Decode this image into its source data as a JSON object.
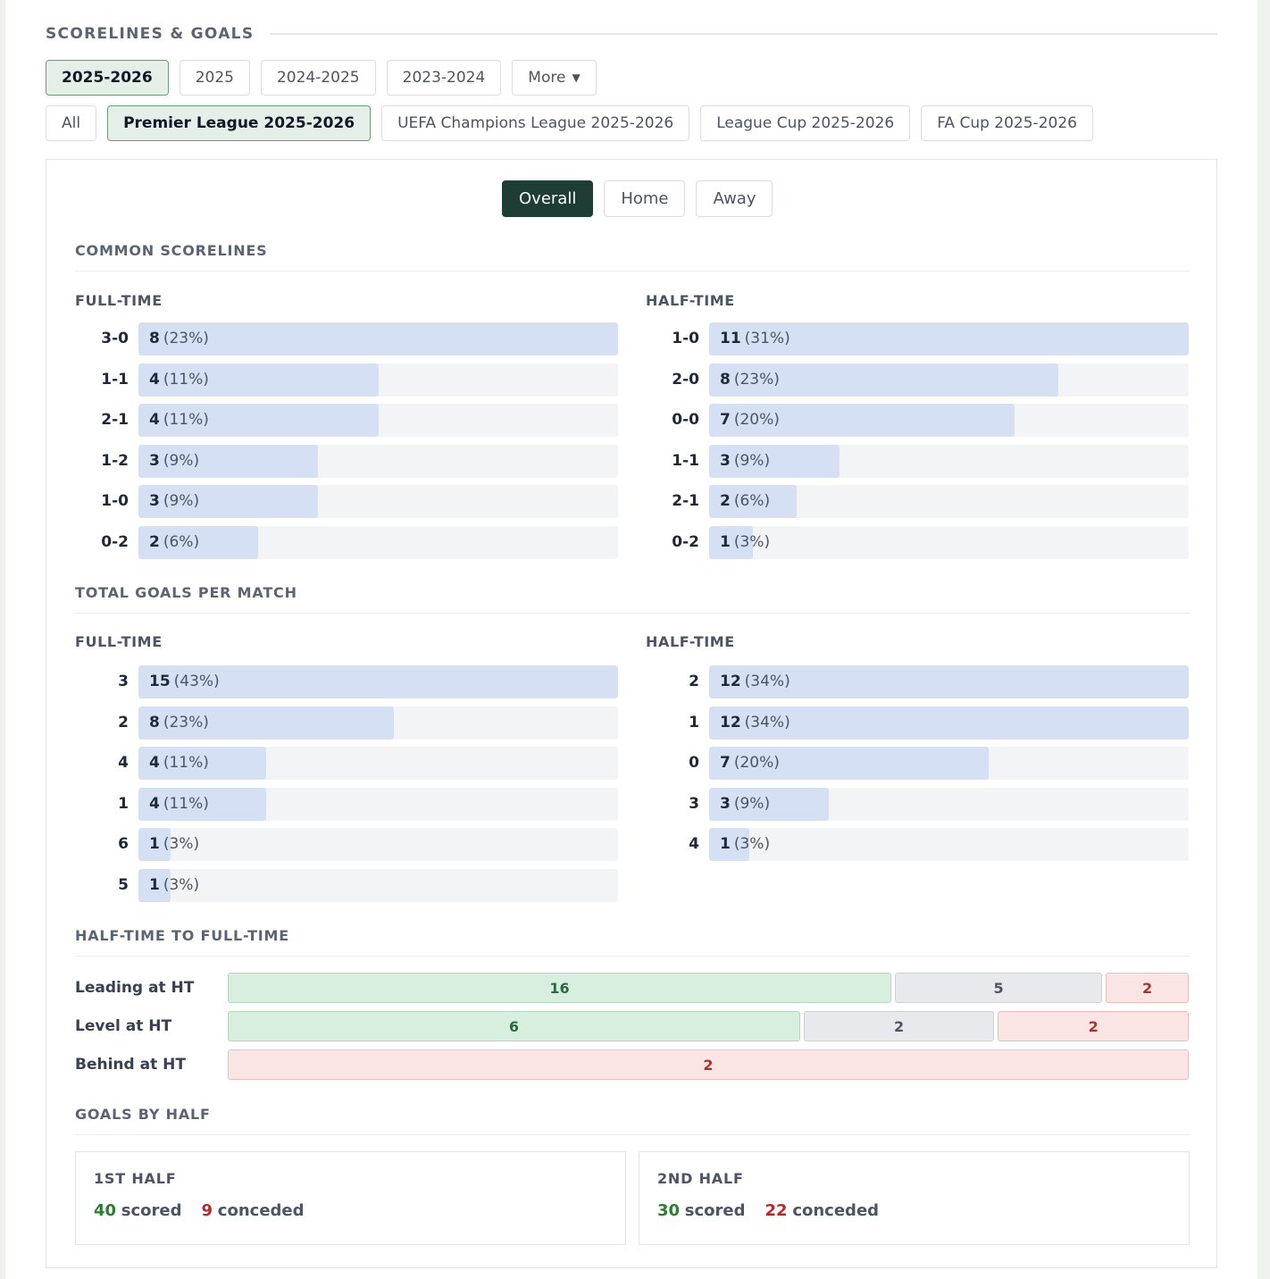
{
  "header": {
    "title": "SCORELINES & GOALS"
  },
  "season_tabs": [
    {
      "label": "2025-2026",
      "active": true
    },
    {
      "label": "2025",
      "active": false
    },
    {
      "label": "2024-2025",
      "active": false
    },
    {
      "label": "2023-2024",
      "active": false
    },
    {
      "label": "More",
      "active": false,
      "dropdown": true
    }
  ],
  "competition_tabs": [
    {
      "label": "All",
      "active": false
    },
    {
      "label": "Premier League 2025-2026",
      "active": true
    },
    {
      "label": "UEFA Champions League 2025-2026",
      "active": false
    },
    {
      "label": "League Cup 2025-2026",
      "active": false
    },
    {
      "label": "FA Cup 2025-2026",
      "active": false
    }
  ],
  "view_toggle": [
    {
      "label": "Overall",
      "active": true
    },
    {
      "label": "Home",
      "active": false
    },
    {
      "label": "Away",
      "active": false
    }
  ],
  "common_scorelines": {
    "title": "COMMON SCORELINES",
    "full_time": {
      "title": "FULL-TIME",
      "rows": [
        {
          "label": "3-0",
          "count": 8,
          "pct": "(23%)"
        },
        {
          "label": "1-1",
          "count": 4,
          "pct": "(11%)"
        },
        {
          "label": "2-1",
          "count": 4,
          "pct": "(11%)"
        },
        {
          "label": "1-2",
          "count": 3,
          "pct": "(9%)"
        },
        {
          "label": "1-0",
          "count": 3,
          "pct": "(9%)"
        },
        {
          "label": "0-2",
          "count": 2,
          "pct": "(6%)"
        }
      ]
    },
    "half_time": {
      "title": "HALF-TIME",
      "rows": [
        {
          "label": "1-0",
          "count": 11,
          "pct": "(31%)"
        },
        {
          "label": "2-0",
          "count": 8,
          "pct": "(23%)"
        },
        {
          "label": "0-0",
          "count": 7,
          "pct": "(20%)"
        },
        {
          "label": "1-1",
          "count": 3,
          "pct": "(9%)"
        },
        {
          "label": "2-1",
          "count": 2,
          "pct": "(6%)"
        },
        {
          "label": "0-2",
          "count": 1,
          "pct": "(3%)"
        }
      ]
    }
  },
  "total_goals": {
    "title": "TOTAL GOALS PER MATCH",
    "full_time": {
      "title": "FULL-TIME",
      "rows": [
        {
          "label": "3",
          "count": 15,
          "pct": "(43%)"
        },
        {
          "label": "2",
          "count": 8,
          "pct": "(23%)"
        },
        {
          "label": "4",
          "count": 4,
          "pct": "(11%)"
        },
        {
          "label": "1",
          "count": 4,
          "pct": "(11%)"
        },
        {
          "label": "6",
          "count": 1,
          "pct": "(3%)"
        },
        {
          "label": "5",
          "count": 1,
          "pct": "(3%)"
        }
      ]
    },
    "half_time": {
      "title": "HALF-TIME",
      "rows": [
        {
          "label": "2",
          "count": 12,
          "pct": "(34%)"
        },
        {
          "label": "1",
          "count": 12,
          "pct": "(34%)"
        },
        {
          "label": "0",
          "count": 7,
          "pct": "(20%)"
        },
        {
          "label": "3",
          "count": 3,
          "pct": "(9%)"
        },
        {
          "label": "4",
          "count": 1,
          "pct": "(3%)"
        }
      ]
    }
  },
  "ht_ft": {
    "title": "HALF-TIME TO FULL-TIME",
    "colors": {
      "win": "#d8eedf",
      "draw": "#e8e9ec",
      "loss": "#fbe4e4"
    },
    "rows": [
      {
        "label": "Leading at HT",
        "win": 16,
        "draw": 5,
        "loss": 2
      },
      {
        "label": "Level at HT",
        "win": 6,
        "draw": 2,
        "loss": 2
      },
      {
        "label": "Behind at HT",
        "win": 0,
        "draw": 0,
        "loss": 2
      }
    ]
  },
  "goals_by_half": {
    "title": "GOALS BY HALF",
    "first": {
      "title": "1ST HALF",
      "scored": "40",
      "scored_label": "scored",
      "conceded": "9",
      "conceded_label": "conceded"
    },
    "second": {
      "title": "2ND HALF",
      "scored": "30",
      "scored_label": "scored",
      "conceded": "22",
      "conceded_label": "conceded"
    }
  }
}
